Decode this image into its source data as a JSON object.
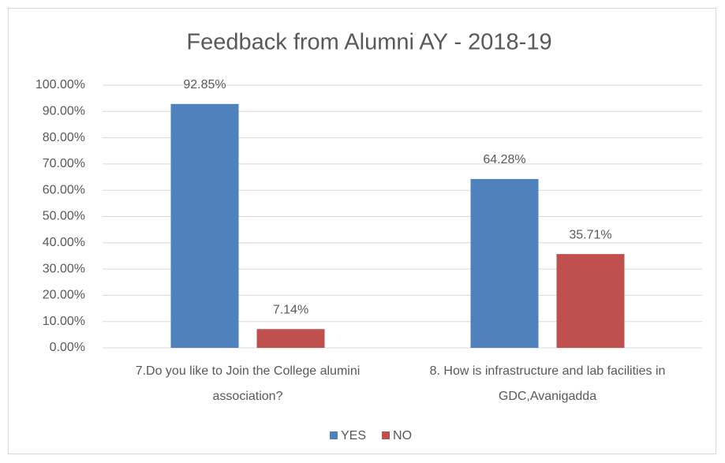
{
  "chart_data": {
    "type": "bar",
    "title": "Feedback from Alumni AY - 2018-19",
    "categories": [
      "7.Do you like to Join the College alumini association?",
      "8. How is infrastructure and lab facilities in GDC,Avanigadda"
    ],
    "series": [
      {
        "name": "YES",
        "color": "#4f81bd",
        "values": [
          92.85,
          64.28
        ],
        "value_labels": [
          "92.85%",
          "64.28%"
        ]
      },
      {
        "name": "NO",
        "color": "#c0504d",
        "values": [
          7.14,
          35.71
        ],
        "value_labels": [
          "7.14%",
          "35.71%"
        ]
      }
    ],
    "ylim": [
      0,
      100
    ],
    "yticks": [
      {
        "value": 0,
        "label": "0.00%"
      },
      {
        "value": 10,
        "label": "10.00%"
      },
      {
        "value": 20,
        "label": "20.00%"
      },
      {
        "value": 30,
        "label": "30.00%"
      },
      {
        "value": 40,
        "label": "40.00%"
      },
      {
        "value": 50,
        "label": "50.00%"
      },
      {
        "value": 60,
        "label": "60.00%"
      },
      {
        "value": 70,
        "label": "70.00%"
      },
      {
        "value": 80,
        "label": "80.00%"
      },
      {
        "value": 90,
        "label": "90.00%"
      },
      {
        "value": 100,
        "label": "100.00%"
      }
    ],
    "grid": true,
    "legend": "bottom"
  }
}
